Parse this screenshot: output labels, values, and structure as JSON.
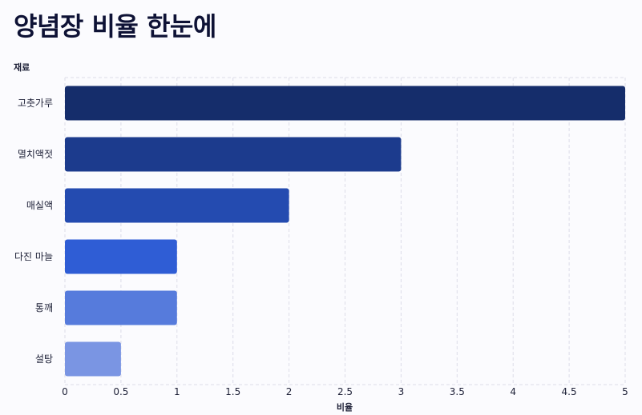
{
  "title": "양념장 비율 한눈에",
  "chart_data": {
    "type": "bar",
    "orientation": "horizontal",
    "title": "양념장 비율 한눈에",
    "xlabel": "비율",
    "ylabel": "재료",
    "categories": [
      "고춧가루",
      "멸치액젓",
      "매실액",
      "다진 마늘",
      "통깨",
      "설탕"
    ],
    "values": [
      5,
      3,
      2,
      1,
      1,
      0.5
    ],
    "bar_colors": [
      "#152d6b",
      "#1c3b8d",
      "#244bb0",
      "#2f5dd5",
      "#567bdc",
      "#7a95e3"
    ],
    "xlim": [
      0,
      5
    ],
    "xticks": [
      "0",
      "0.5",
      "1",
      "1.5",
      "2",
      "2.5",
      "3",
      "3.5",
      "4",
      "4.5",
      "5"
    ],
    "grid": true
  }
}
